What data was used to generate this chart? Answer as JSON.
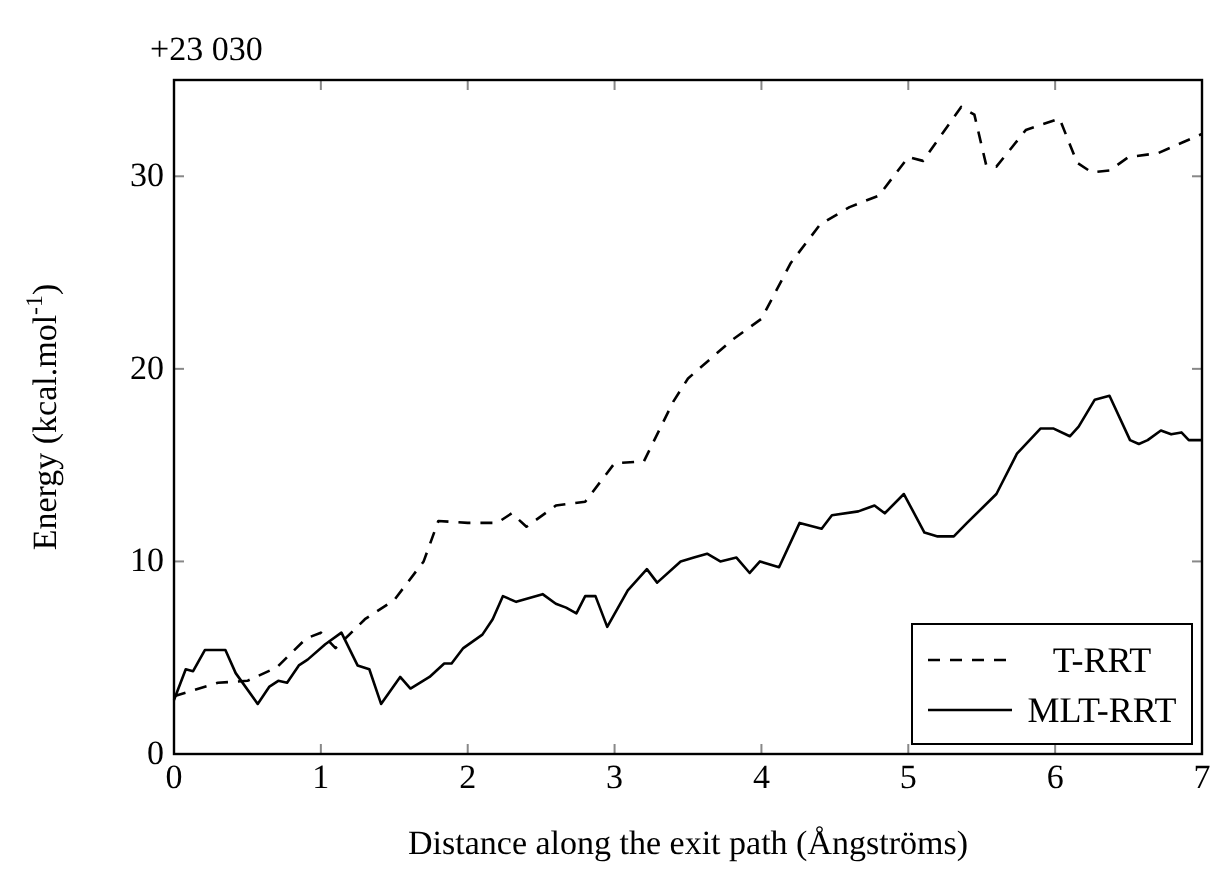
{
  "chart_data": {
    "type": "line",
    "xlabel": "Distance along the exit path (Ångströms)",
    "ylabel": "Energy (kcal.mol$^{-1}$)",
    "annotations": [
      "+23 030"
    ],
    "xlim": [
      0,
      7
    ],
    "ylim": [
      0,
      35
    ],
    "xticks": [
      0,
      1,
      2,
      3,
      4,
      5,
      6,
      7
    ],
    "yticks": [
      0,
      10,
      20,
      30
    ],
    "grid": false,
    "legend": "bottom right",
    "series": [
      {
        "name": "T-RRT",
        "color": "#000000",
        "line_style": "dashed",
        "x": [
          0,
          0.3,
          0.5,
          0.7,
          0.9,
          1.0,
          1.1,
          1.3,
          1.5,
          1.7,
          1.8,
          2.0,
          2.2,
          2.3,
          2.4,
          2.6,
          2.8,
          3.0,
          3.2,
          3.4,
          3.5,
          3.8,
          4.0,
          4.2,
          4.4,
          4.6,
          4.8,
          5.0,
          5.1,
          5.36,
          5.45,
          5.53,
          5.6,
          5.8,
          6.03,
          6.15,
          6.25,
          6.37,
          6.5,
          6.7,
          7
        ],
        "values": [
          3,
          3.7,
          3.8,
          4.5,
          6,
          6.3,
          5.5,
          7,
          8,
          10,
          12.1,
          12,
          12,
          12.5,
          11.8,
          12.9,
          13.1,
          15.1,
          15.2,
          18.3,
          19.5,
          21.5,
          22.6,
          25.5,
          27.5,
          28.4,
          29,
          31,
          30.8,
          33.6,
          33.2,
          30.6,
          30.5,
          32.4,
          33,
          30.7,
          30.2,
          30.3,
          31,
          31.2,
          32.2
        ]
      },
      {
        "name": "MLT-RRT",
        "color": "#000000",
        "line_style": "solid",
        "x": [
          0,
          0.08,
          0.13,
          0.21,
          0.35,
          0.42,
          0.57,
          0.65,
          0.71,
          0.77,
          0.85,
          0.91,
          1.03,
          1.14,
          1.25,
          1.33,
          1.41,
          1.54,
          1.61,
          1.74,
          1.84,
          1.89,
          1.97,
          2.1,
          2.17,
          2.24,
          2.33,
          2.51,
          2.6,
          2.67,
          2.74,
          2.8,
          2.87,
          2.95,
          3.09,
          3.22,
          3.29,
          3.45,
          3.54,
          3.63,
          3.72,
          3.83,
          3.92,
          3.99,
          4.12,
          4.26,
          4.41,
          4.48,
          4.66,
          4.77,
          4.84,
          4.97,
          5.11,
          5.2,
          5.31,
          5.4,
          5.6,
          5.74,
          5.9,
          5.99,
          6.1,
          6.16,
          6.27,
          6.37,
          6.51,
          6.57,
          6.63,
          6.72,
          6.79,
          6.86,
          6.91,
          7
        ],
        "values": [
          2.8,
          4.4,
          4.3,
          5.4,
          5.4,
          4.2,
          2.6,
          3.5,
          3.8,
          3.7,
          4.6,
          4.9,
          5.7,
          6.3,
          4.6,
          4.4,
          2.6,
          4,
          3.4,
          4,
          4.7,
          4.7,
          5.5,
          6.2,
          7,
          8.2,
          7.9,
          8.3,
          7.8,
          7.6,
          7.3,
          8.2,
          8.2,
          6.6,
          8.5,
          9.6,
          8.9,
          10,
          10.2,
          10.4,
          10,
          10.2,
          9.4,
          10,
          9.7,
          12,
          11.7,
          12.4,
          12.6,
          12.9,
          12.5,
          13.5,
          11.5,
          11.3,
          11.3,
          12,
          13.5,
          15.6,
          16.9,
          16.9,
          16.5,
          17,
          18.4,
          18.6,
          16.3,
          16.1,
          16.3,
          16.8,
          16.6,
          16.7,
          16.3,
          16.3
        ]
      }
    ]
  }
}
